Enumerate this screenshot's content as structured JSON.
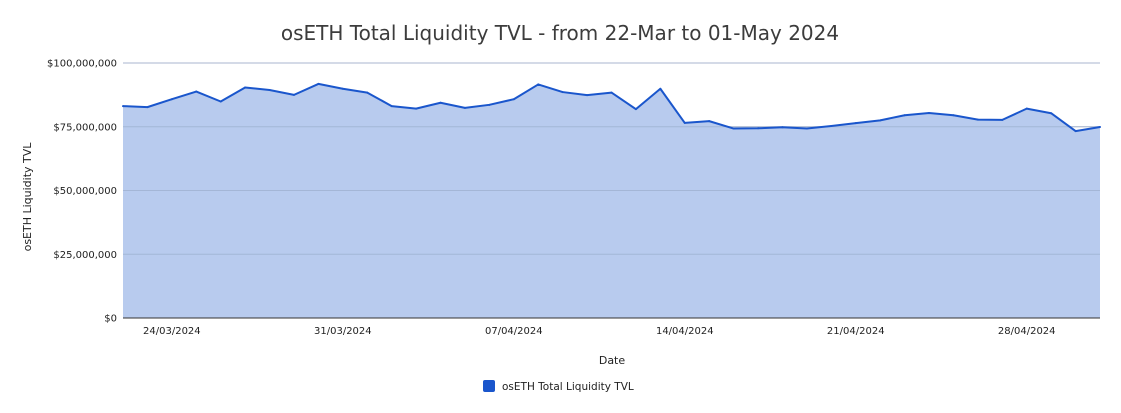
{
  "chart_data": {
    "type": "area",
    "title": "osETH Total Liquidity TVL - from 22-Mar to 01-May 2024",
    "xlabel": "Date",
    "ylabel": "osETH Liquidity TVL",
    "ylim": [
      0,
      100000000
    ],
    "y_ticks": [
      {
        "value": 0,
        "label": "$0"
      },
      {
        "value": 25000000,
        "label": "$25,000,000"
      },
      {
        "value": 50000000,
        "label": "$50,000,000"
      },
      {
        "value": 75000000,
        "label": "$75,000,000"
      },
      {
        "value": 100000000,
        "label": "$100,000,000"
      }
    ],
    "x_ticks": [
      {
        "index": 2,
        "label": "24/03/2024"
      },
      {
        "index": 9,
        "label": "31/03/2024"
      },
      {
        "index": 16,
        "label": "07/04/2024"
      },
      {
        "index": 23,
        "label": "14/04/2024"
      },
      {
        "index": 30,
        "label": "21/04/2024"
      },
      {
        "index": 37,
        "label": "28/04/2024"
      }
    ],
    "grid": true,
    "legend": "bottom-center",
    "series": [
      {
        "name": "osETH Total Liquidity TVL",
        "color": "#1a56cc",
        "fill": "#b8cbee",
        "categories": [
          "22/03/2024",
          "23/03/2024",
          "24/03/2024",
          "25/03/2024",
          "26/03/2024",
          "27/03/2024",
          "28/03/2024",
          "29/03/2024",
          "30/03/2024",
          "31/03/2024",
          "01/04/2024",
          "02/04/2024",
          "03/04/2024",
          "04/04/2024",
          "05/04/2024",
          "06/04/2024",
          "07/04/2024",
          "08/04/2024",
          "09/04/2024",
          "10/04/2024",
          "11/04/2024",
          "12/04/2024",
          "13/04/2024",
          "14/04/2024",
          "15/04/2024",
          "16/04/2024",
          "17/04/2024",
          "18/04/2024",
          "19/04/2024",
          "20/04/2024",
          "21/04/2024",
          "22/04/2024",
          "23/04/2024",
          "24/04/2024",
          "25/04/2024",
          "26/04/2024",
          "27/04/2024",
          "28/04/2024",
          "29/04/2024",
          "30/04/2024",
          "01/05/2024"
        ],
        "values": [
          83100000,
          82700000,
          85800000,
          88800000,
          84900000,
          90400000,
          89400000,
          87500000,
          91800000,
          89900000,
          88400000,
          83100000,
          82100000,
          84400000,
          82400000,
          83600000,
          85800000,
          91600000,
          88600000,
          87400000,
          88400000,
          81900000,
          89900000,
          76500000,
          77200000,
          74300000,
          74400000,
          74800000,
          74300000,
          75300000,
          76400000,
          77500000,
          79500000,
          80400000,
          79500000,
          77800000,
          77700000,
          82100000,
          80300000,
          73300000,
          74900000
        ]
      }
    ]
  }
}
